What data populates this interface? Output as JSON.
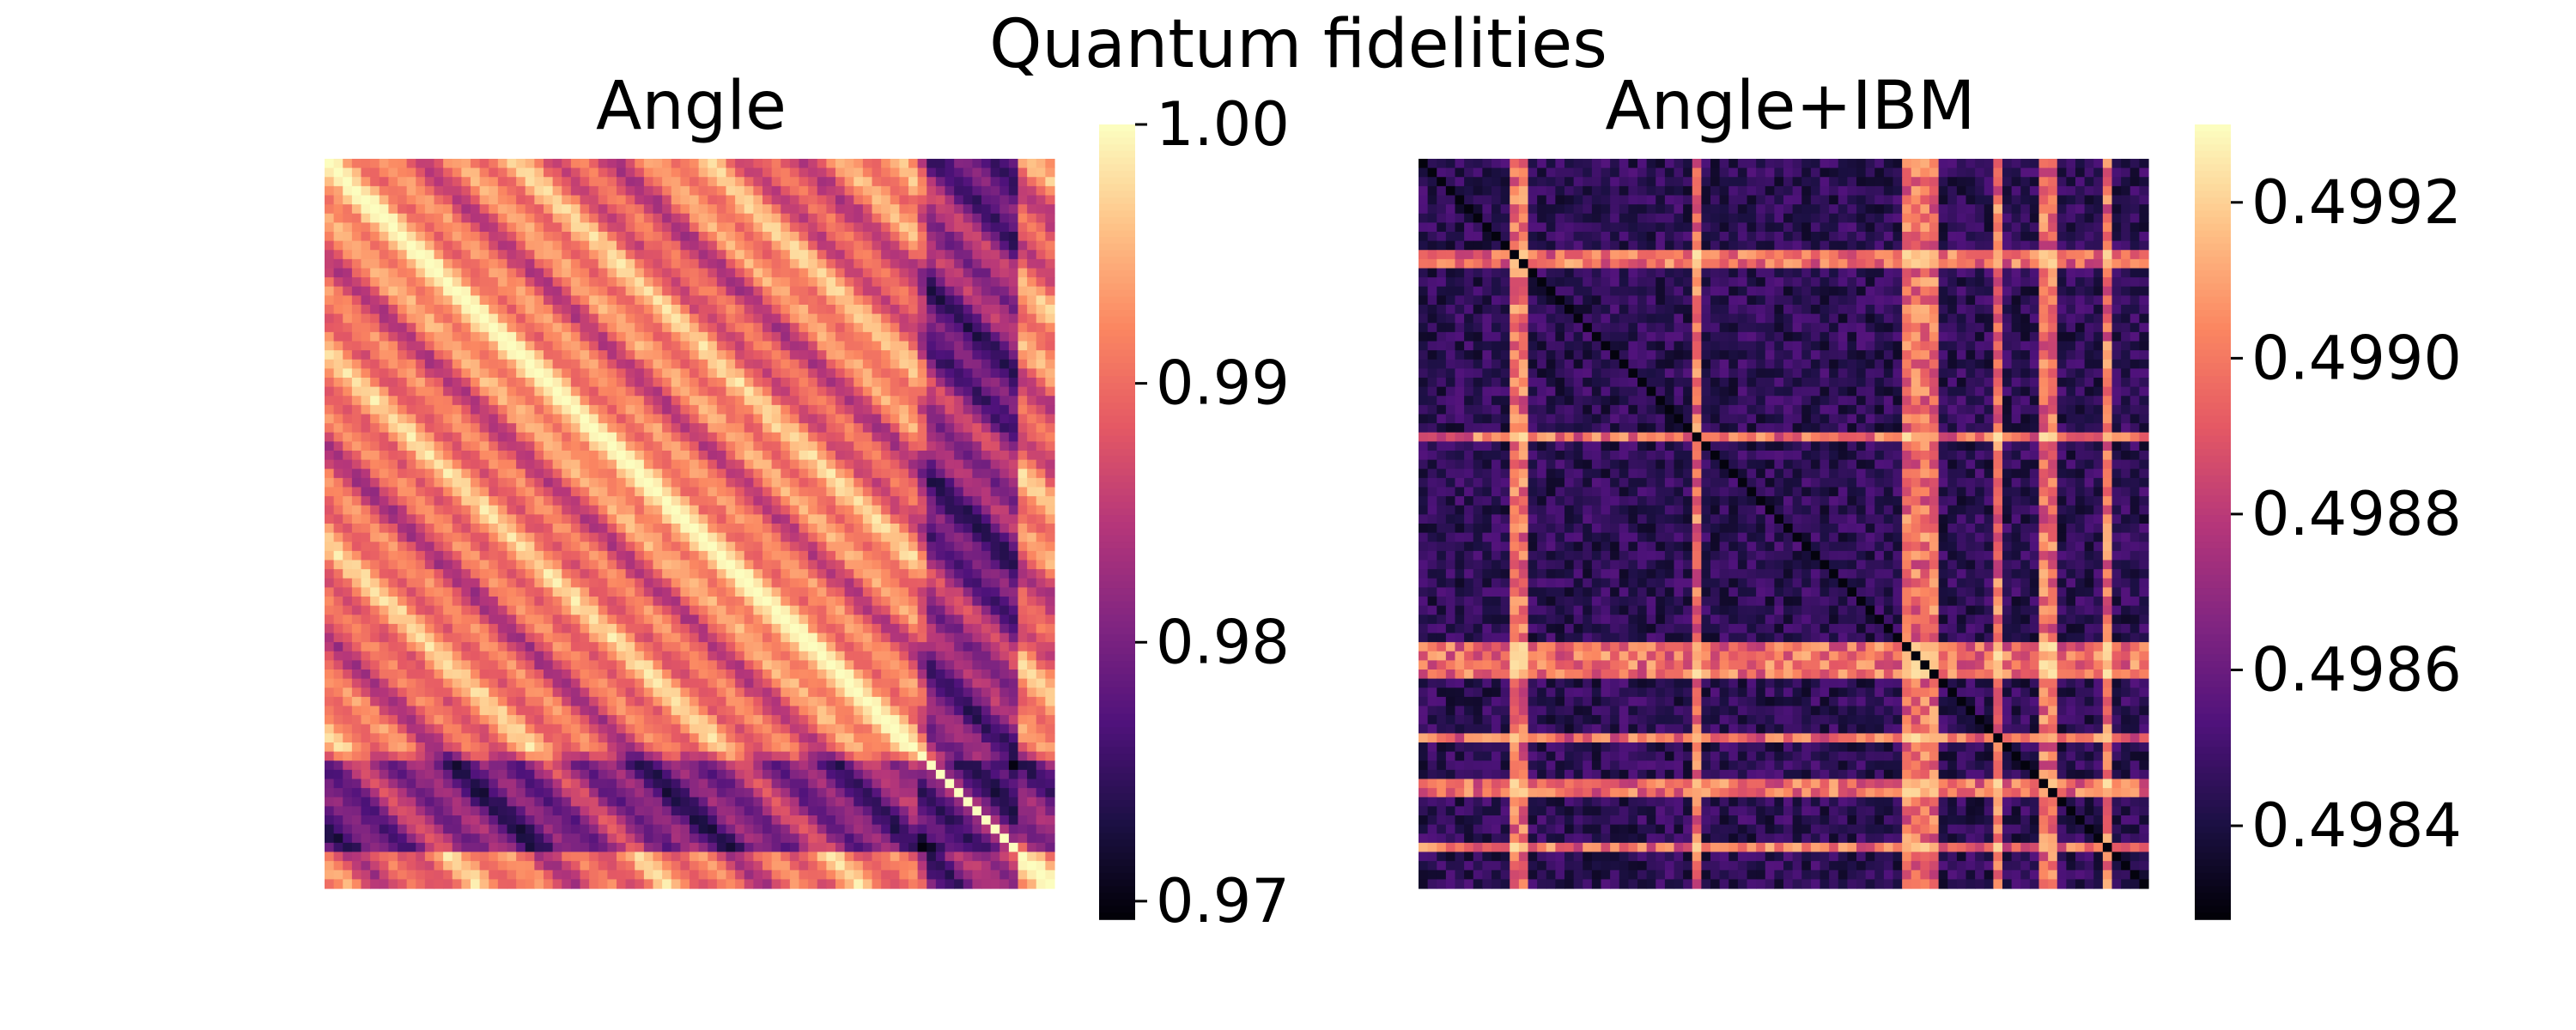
{
  "figure": {
    "title": "Quantum fidelities"
  },
  "colormap": {
    "name": "magma",
    "stops": [
      "#000004",
      "#1c1044",
      "#4f127b",
      "#812581",
      "#b5367a",
      "#e55964",
      "#fb8761",
      "#fec287",
      "#fcfdbf"
    ]
  },
  "chart_data": [
    {
      "type": "heatmap",
      "title": "Angle",
      "matrix_size": 80,
      "xlabel": "",
      "ylabel": "",
      "axis_ticks": "hidden",
      "colorbar": {
        "min": 0.9693,
        "max": 1.0,
        "ticks": [
          1.0,
          0.99,
          0.98,
          0.97
        ],
        "tick_labels": [
          "1.00",
          "0.99",
          "0.98",
          "0.97"
        ],
        "position": "right"
      },
      "pattern": {
        "diagonal": 1.0,
        "typical_range": [
          0.984,
          0.998
        ],
        "low_band_rows": [
          66,
          67,
          68,
          69,
          70,
          71,
          72,
          73,
          74,
          75
        ],
        "low_region_cols": [
          65,
          66,
          67,
          68,
          69,
          70,
          71,
          72,
          73,
          74,
          75
        ],
        "min_value": 0.9693
      }
    },
    {
      "type": "heatmap",
      "title": "Angle+IBM",
      "matrix_size": 80,
      "xlabel": "",
      "ylabel": "",
      "axis_ticks": "hidden",
      "colorbar": {
        "min": 0.49828,
        "max": 0.4993,
        "ticks": [
          0.4992,
          0.499,
          0.4988,
          0.4986,
          0.4984
        ],
        "tick_labels": [
          "0.4992",
          "0.4990",
          "0.4988",
          "0.4986",
          "0.4984"
        ],
        "position": "right"
      },
      "pattern": {
        "background_range": [
          0.49835,
          0.49855
        ],
        "bright_indices": [
          10,
          11,
          30,
          53,
          54,
          55,
          56,
          63,
          68,
          69,
          75
        ],
        "diagonal": 0.4983
      }
    }
  ]
}
